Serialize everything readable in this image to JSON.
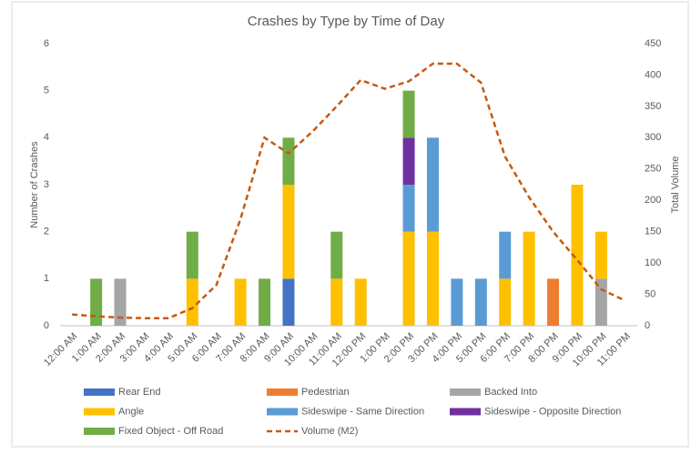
{
  "chart_data": {
    "type": "bar",
    "title": "Crashes by Type by Time of Day",
    "y_label": "Number of Crashes",
    "y2_label": "Total Volume",
    "categories": [
      "12:00 AM",
      "1:00 AM",
      "2:00 AM",
      "3:00 AM",
      "4:00 AM",
      "5:00 AM",
      "6:00 AM",
      "7:00 AM",
      "8:00 AM",
      "9:00 AM",
      "10:00 AM",
      "11:00 AM",
      "12:00 PM",
      "1:00 PM",
      "2:00 PM",
      "3:00 PM",
      "4:00 PM",
      "5:00 PM",
      "6:00 PM",
      "7:00 PM",
      "8:00 PM",
      "9:00 PM",
      "10:00 PM",
      "11:00 PM"
    ],
    "ylim": [
      0,
      6
    ],
    "yticks": [
      0,
      1,
      2,
      3,
      4,
      5,
      6
    ],
    "y2lim": [
      0,
      450
    ],
    "y2ticks": [
      0,
      50,
      100,
      150,
      200,
      250,
      300,
      350,
      400,
      450
    ],
    "stacked": true,
    "series": [
      {
        "name": "Rear End",
        "color": "#4472c4",
        "values": [
          0,
          0,
          0,
          0,
          0,
          0,
          0,
          0,
          0,
          1,
          0,
          0,
          0,
          0,
          0,
          0,
          0,
          0,
          0,
          0,
          0,
          0,
          0,
          0
        ]
      },
      {
        "name": "Pedestrian",
        "color": "#ed7d31",
        "values": [
          0,
          0,
          0,
          0,
          0,
          0,
          0,
          0,
          0,
          0,
          0,
          0,
          0,
          0,
          0,
          0,
          0,
          0,
          0,
          0,
          1,
          0,
          0,
          0
        ]
      },
      {
        "name": "Backed Into",
        "color": "#a5a5a5",
        "values": [
          0,
          0,
          1,
          0,
          0,
          0,
          0,
          0,
          0,
          0,
          0,
          0,
          0,
          0,
          0,
          0,
          0,
          0,
          0,
          0,
          0,
          0,
          1,
          0
        ]
      },
      {
        "name": "Angle",
        "color": "#ffc000",
        "values": [
          0,
          0,
          0,
          0,
          0,
          1,
          0,
          1,
          0,
          2,
          0,
          1,
          1,
          0,
          2,
          2,
          0,
          0,
          1,
          2,
          0,
          3,
          1,
          0
        ]
      },
      {
        "name": "Sideswipe - Same Direction",
        "color": "#5b9bd5",
        "values": [
          0,
          0,
          0,
          0,
          0,
          0,
          0,
          0,
          0,
          0,
          0,
          0,
          0,
          0,
          1,
          2,
          1,
          1,
          1,
          0,
          0,
          0,
          0,
          0
        ]
      },
      {
        "name": "Sideswipe - Opposite Direction",
        "color": "#7030a0",
        "values": [
          0,
          0,
          0,
          0,
          0,
          0,
          0,
          0,
          0,
          0,
          0,
          0,
          0,
          0,
          1,
          0,
          0,
          0,
          0,
          0,
          0,
          0,
          0,
          0
        ]
      },
      {
        "name": "Fixed Object - Off Road",
        "color": "#70ad47",
        "values": [
          0,
          1,
          0,
          0,
          0,
          1,
          0,
          0,
          1,
          1,
          0,
          1,
          0,
          0,
          1,
          0,
          0,
          0,
          0,
          0,
          0,
          0,
          0,
          0
        ]
      },
      {
        "name": "Volume (M2)",
        "color": "#c55a11",
        "type": "line",
        "dashed": true,
        "axis": "y2",
        "values": [
          18,
          15,
          13,
          12,
          12,
          28,
          65,
          170,
          300,
          275,
          310,
          350,
          392,
          378,
          390,
          418,
          418,
          388,
          270,
          205,
          150,
          105,
          58,
          40
        ]
      }
    ]
  }
}
